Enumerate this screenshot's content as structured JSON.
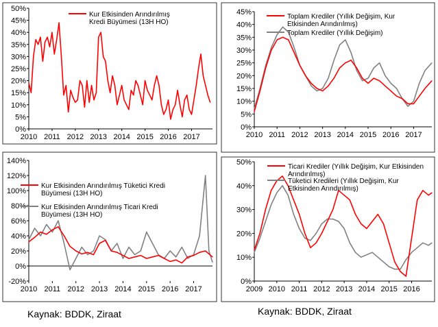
{
  "source_labels": [
    "Kaynak: BDDK, Ziraat",
    "Kaynak: BDDK, Ziraat"
  ],
  "chart_data": [
    {
      "type": "line",
      "title": "",
      "ylim": [
        0,
        50
      ],
      "yticks": [
        "0%",
        "5%",
        "10%",
        "15%",
        "20%",
        "25%",
        "30%",
        "35%",
        "40%",
        "45%",
        "50%"
      ],
      "xlim": [
        2010,
        2017.9
      ],
      "xticks": [
        "2010",
        "2011",
        "2012",
        "2013",
        "2014",
        "2015",
        "2016",
        "2017"
      ],
      "grid": false,
      "legend_position": "top-right",
      "legend": [
        {
          "lines": [
            "Kur Etkisinden Arındırılmış",
            "Kredi Büyümesi (13H HO)"
          ],
          "color": "#ff0000"
        }
      ],
      "series": [
        {
          "name": "Kur Etkisinden Arındırılmış Kredi Büyümesi (13H HO)",
          "color": "#ff0000",
          "x": [
            2010.0,
            2010.1,
            2010.2,
            2010.3,
            2010.4,
            2010.5,
            2010.6,
            2010.7,
            2010.8,
            2010.9,
            2011.0,
            2011.1,
            2011.2,
            2011.3,
            2011.4,
            2011.5,
            2011.6,
            2011.7,
            2011.8,
            2011.9,
            2012.0,
            2012.1,
            2012.2,
            2012.3,
            2012.4,
            2012.5,
            2012.6,
            2012.7,
            2012.8,
            2012.9,
            2013.0,
            2013.1,
            2013.2,
            2013.3,
            2013.4,
            2013.5,
            2013.6,
            2013.7,
            2013.8,
            2013.9,
            2014.0,
            2014.1,
            2014.2,
            2014.3,
            2014.4,
            2014.5,
            2014.6,
            2014.7,
            2014.8,
            2014.9,
            2015.0,
            2015.1,
            2015.2,
            2015.3,
            2015.4,
            2015.5,
            2015.6,
            2015.7,
            2015.8,
            2015.9,
            2016.0,
            2016.1,
            2016.2,
            2016.3,
            2016.4,
            2016.5,
            2016.6,
            2016.7,
            2016.8,
            2016.9,
            2017.0,
            2017.1,
            2017.2,
            2017.3,
            2017.4,
            2017.5,
            2017.6,
            2017.7,
            2017.8
          ],
          "y": [
            19,
            15,
            30,
            37,
            35,
            38,
            28,
            36,
            38,
            34,
            40,
            31,
            37,
            44,
            30,
            14,
            18,
            7,
            16,
            13,
            11,
            12,
            20,
            18,
            9,
            20,
            11,
            18,
            12,
            15,
            38,
            40,
            30,
            28,
            20,
            15,
            22,
            18,
            10,
            14,
            18,
            12,
            10,
            8,
            16,
            14,
            20,
            18,
            14,
            10,
            20,
            16,
            14,
            12,
            18,
            22,
            18,
            10,
            6,
            8,
            12,
            4,
            8,
            10,
            16,
            10,
            5,
            12,
            14,
            8,
            6,
            12,
            18,
            25,
            31,
            22,
            18,
            14,
            11
          ]
        }
      ]
    },
    {
      "type": "line",
      "title": "",
      "ylim": [
        0,
        45
      ],
      "yticks": [
        "0%",
        "5%",
        "10%",
        "15%",
        "20%",
        "25%",
        "30%",
        "35%",
        "40%",
        "45%"
      ],
      "xlim": [
        2010,
        2017.8
      ],
      "xticks": [
        "2010",
        "2011",
        "2012",
        "2013",
        "2014",
        "2015",
        "2016",
        "2017"
      ],
      "grid": false,
      "legend_position": "top-right",
      "legend": [
        {
          "lines": [
            "Toplam Krediler (Yıllık Değişim, Kur",
            "Etkisinden Arındırılmış)"
          ],
          "color": "#ff0000"
        },
        {
          "lines": [
            "Toplam Krediler (Yıllık Değişim)"
          ],
          "color": "#808080"
        }
      ],
      "series": [
        {
          "name": "Toplam Krediler (Yıllık Değişim, Kur Etkisinden Arındırılmış)",
          "color": "#ff0000",
          "x": [
            2010.0,
            2010.25,
            2010.5,
            2010.75,
            2011.0,
            2011.25,
            2011.5,
            2011.75,
            2012.0,
            2012.25,
            2012.5,
            2012.75,
            2013.0,
            2013.25,
            2013.5,
            2013.75,
            2014.0,
            2014.25,
            2014.5,
            2014.75,
            2015.0,
            2015.25,
            2015.5,
            2015.75,
            2016.0,
            2016.25,
            2016.5,
            2016.75,
            2017.0,
            2017.25,
            2017.5,
            2017.8
          ],
          "y": [
            6,
            14,
            23,
            30,
            34,
            35,
            34,
            29,
            24,
            20,
            17,
            15,
            14,
            16,
            19,
            23,
            25,
            26,
            23,
            19,
            17,
            19,
            18,
            16,
            14,
            12,
            11,
            9,
            9,
            12,
            15,
            18
          ]
        },
        {
          "name": "Toplam Krediler (Yıllık Değişim)",
          "color": "#808080",
          "x": [
            2010.0,
            2010.25,
            2010.5,
            2010.75,
            2011.0,
            2011.25,
            2011.5,
            2011.75,
            2012.0,
            2012.25,
            2012.5,
            2012.75,
            2013.0,
            2013.25,
            2013.5,
            2013.75,
            2014.0,
            2014.25,
            2014.5,
            2014.75,
            2015.0,
            2015.25,
            2015.5,
            2015.75,
            2016.0,
            2016.25,
            2016.5,
            2016.75,
            2017.0,
            2017.25,
            2017.5,
            2017.8
          ],
          "y": [
            7,
            15,
            24,
            31,
            36,
            39,
            37,
            31,
            24,
            20,
            16,
            14,
            15,
            19,
            26,
            32,
            34,
            29,
            22,
            18,
            19,
            23,
            25,
            20,
            17,
            15,
            11,
            8,
            10,
            17,
            22,
            25
          ]
        }
      ]
    },
    {
      "type": "line",
      "title": "",
      "ylim": [
        -20,
        140
      ],
      "yticks": [
        "-20%",
        "0%",
        "20%",
        "40%",
        "60%",
        "80%",
        "100%",
        "120%",
        "140%"
      ],
      "xlim": [
        2010,
        2017.8
      ],
      "xticks": [
        "2010",
        "2011",
        "2012",
        "2013",
        "2014",
        "2015",
        "2016",
        "2017"
      ],
      "grid": false,
      "legend_position": "top-left",
      "legend": [
        {
          "lines": [
            "Kur Etkisinden Arındırılmış Tüketici Kredi",
            "Büyümesi (13H HO)"
          ],
          "color": "#ff0000"
        },
        {
          "lines": [
            "Kur Etkisinden Arındırılmış Ticari Kredi",
            "Büyümesi (13H HO)"
          ],
          "color": "#808080"
        }
      ],
      "series": [
        {
          "name": "Kur Etkisinden Arındırılmış Tüketici Kredi Büyümesi (13H HO)",
          "color": "#ff0000",
          "x": [
            2010.0,
            2010.25,
            2010.5,
            2010.75,
            2011.0,
            2011.25,
            2011.5,
            2011.75,
            2012.0,
            2012.25,
            2012.5,
            2012.75,
            2013.0,
            2013.25,
            2013.5,
            2013.75,
            2014.0,
            2014.25,
            2014.5,
            2014.75,
            2015.0,
            2015.25,
            2015.5,
            2015.75,
            2016.0,
            2016.25,
            2016.5,
            2016.75,
            2017.0,
            2017.25,
            2017.5,
            2017.8
          ],
          "y": [
            32,
            38,
            45,
            42,
            48,
            52,
            40,
            26,
            20,
            16,
            18,
            15,
            30,
            34,
            20,
            18,
            14,
            10,
            12,
            14,
            10,
            12,
            14,
            10,
            6,
            8,
            4,
            12,
            14,
            18,
            20,
            12
          ]
        },
        {
          "name": "Kur Etkisinden Arındırılmış Ticari Kredi Büyümesi (13H HO)",
          "color": "#808080",
          "x": [
            2010.0,
            2010.25,
            2010.5,
            2010.75,
            2011.0,
            2011.25,
            2011.5,
            2011.75,
            2012.0,
            2012.25,
            2012.5,
            2012.75,
            2013.0,
            2013.25,
            2013.5,
            2013.75,
            2014.0,
            2014.25,
            2014.5,
            2014.75,
            2015.0,
            2015.25,
            2015.5,
            2015.75,
            2016.0,
            2016.25,
            2016.5,
            2016.75,
            2017.0,
            2017.25,
            2017.5,
            2017.65,
            2017.8
          ],
          "y": [
            35,
            50,
            40,
            55,
            45,
            60,
            30,
            -5,
            10,
            25,
            15,
            20,
            40,
            35,
            20,
            30,
            10,
            25,
            15,
            20,
            45,
            30,
            15,
            10,
            20,
            12,
            25,
            10,
            15,
            40,
            120,
            20,
            5
          ]
        }
      ]
    },
    {
      "type": "line",
      "title": "",
      "ylim": [
        0,
        50
      ],
      "yticks": [
        "0%",
        "10%",
        "20%",
        "30%",
        "40%",
        "50%"
      ],
      "xlim": [
        2009,
        2016.9
      ],
      "xticks": [
        "2009",
        "2010",
        "2011",
        "2012",
        "2013",
        "2014",
        "2015",
        "2016"
      ],
      "grid": false,
      "legend_position": "top-right",
      "legend": [
        {
          "lines": [
            "Ticari Krediler (Yıllık Değişim, Kur Etkisinden",
            "Arındırılmış)"
          ],
          "color": "#ff0000"
        },
        {
          "lines": [
            "Tüketici Kredileri (Yıllık Değişim, Kur",
            "Etkisinden Arındırılmış)"
          ],
          "color": "#808080"
        }
      ],
      "series": [
        {
          "name": "Ticari Krediler (Yıllık Değişim, Kur Etkisinden Arındırılmış)",
          "color": "#ff0000",
          "x": [
            2009.0,
            2009.25,
            2009.5,
            2009.75,
            2010.0,
            2010.25,
            2010.5,
            2010.75,
            2011.0,
            2011.25,
            2011.5,
            2011.75,
            2012.0,
            2012.25,
            2012.5,
            2012.75,
            2013.0,
            2013.25,
            2013.5,
            2013.75,
            2014.0,
            2014.25,
            2014.5,
            2014.75,
            2015.0,
            2015.25,
            2015.5,
            2015.75,
            2016.0,
            2016.25,
            2016.5,
            2016.75,
            2016.9
          ],
          "y": [
            13,
            20,
            30,
            38,
            42,
            44,
            40,
            34,
            28,
            20,
            14,
            16,
            20,
            25,
            30,
            38,
            36,
            34,
            28,
            24,
            22,
            25,
            28,
            24,
            16,
            8,
            4,
            2,
            18,
            34,
            38,
            36,
            37
          ]
        },
        {
          "name": "Tüketici Kredileri (Yıllık Değişim, Kur Etkisinden Arındırılmış)",
          "color": "#808080",
          "x": [
            2009.0,
            2009.25,
            2009.5,
            2009.75,
            2010.0,
            2010.25,
            2010.5,
            2010.75,
            2011.0,
            2011.25,
            2011.5,
            2011.75,
            2012.0,
            2012.25,
            2012.5,
            2012.75,
            2013.0,
            2013.25,
            2013.5,
            2013.75,
            2014.0,
            2014.25,
            2014.5,
            2014.75,
            2015.0,
            2015.25,
            2015.5,
            2015.75,
            2016.0,
            2016.25,
            2016.5,
            2016.75,
            2016.9
          ],
          "y": [
            12,
            18,
            25,
            32,
            37,
            40,
            36,
            28,
            22,
            18,
            17,
            20,
            24,
            26,
            26,
            25,
            22,
            16,
            12,
            10,
            11,
            12,
            10,
            8,
            6,
            5,
            5,
            9,
            12,
            14,
            16,
            15,
            16
          ]
        }
      ]
    }
  ]
}
